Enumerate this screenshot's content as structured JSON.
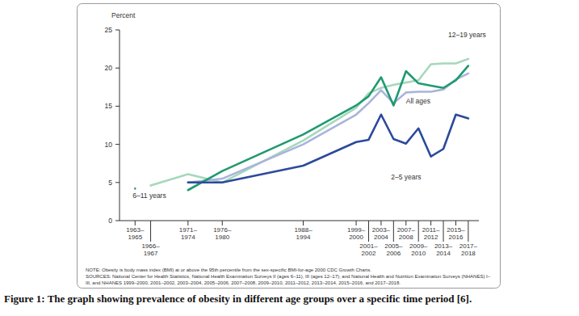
{
  "chart_data": {
    "type": "line",
    "y_label": "Percent",
    "categories": [
      "1963–1965",
      "1966–1967",
      "1971–1974",
      "1976–1980",
      "1988–1994",
      "1999–2000",
      "2001–2002",
      "2003–2004",
      "2005–2006",
      "2007–2008",
      "2009–2010",
      "2011–2012",
      "2013–2014",
      "2015–2016",
      "2017–2018"
    ],
    "series": [
      {
        "name": "12–19 years",
        "color": "#a6d8bb",
        "values": [
          null,
          4.6,
          6.1,
          5.0,
          10.5,
          14.8,
          16.7,
          17.4,
          17.8,
          18.1,
          18.4,
          20.5,
          20.6,
          20.6,
          21.2
        ]
      },
      {
        "name": "All ages",
        "color": "#a9b4dc",
        "values": [
          null,
          null,
          5.0,
          5.5,
          10.0,
          13.9,
          15.4,
          17.1,
          15.4,
          16.8,
          16.9,
          16.9,
          17.2,
          18.5,
          19.3
        ]
      },
      {
        "name": "6–11 years",
        "color": "#1f9a70",
        "values": [
          4.2,
          null,
          4.0,
          6.5,
          11.3,
          15.1,
          16.3,
          18.8,
          15.1,
          19.6,
          18.0,
          17.7,
          17.4,
          18.4,
          20.3
        ]
      },
      {
        "name": "2–5 years",
        "color": "#2c4a9b",
        "values": [
          null,
          null,
          5.0,
          5.0,
          7.2,
          10.3,
          10.6,
          13.9,
          10.7,
          10.1,
          12.1,
          8.4,
          9.4,
          13.9,
          13.4
        ]
      }
    ],
    "ylim": [
      0,
      25
    ],
    "yticks": [
      0,
      5,
      10,
      15,
      20,
      25
    ],
    "grid": false,
    "note": "NOTE: Obesity is body mass index (BMI) at or above the 95th percentile from the sex-specific BMI-for-age 2000 CDC Growth Charts.",
    "sources": "SOURCES: National Center for Health Statistics, National Health Examination Surveys II (ages 6–11), III (ages 12–17); and National Health and Nutrition Examination Surveys (NHANES) I–III, and NHANES 1999–2000, 2001–2002, 2003–2004, 2005–2006, 2007–2008, 2009–2010, 2011–2012, 2013–2014, 2015–2016, and 2017–2018.",
    "caption": "Figure 1: The graph showing prevalence of obesity in different age groups over a specific time period [6]."
  }
}
